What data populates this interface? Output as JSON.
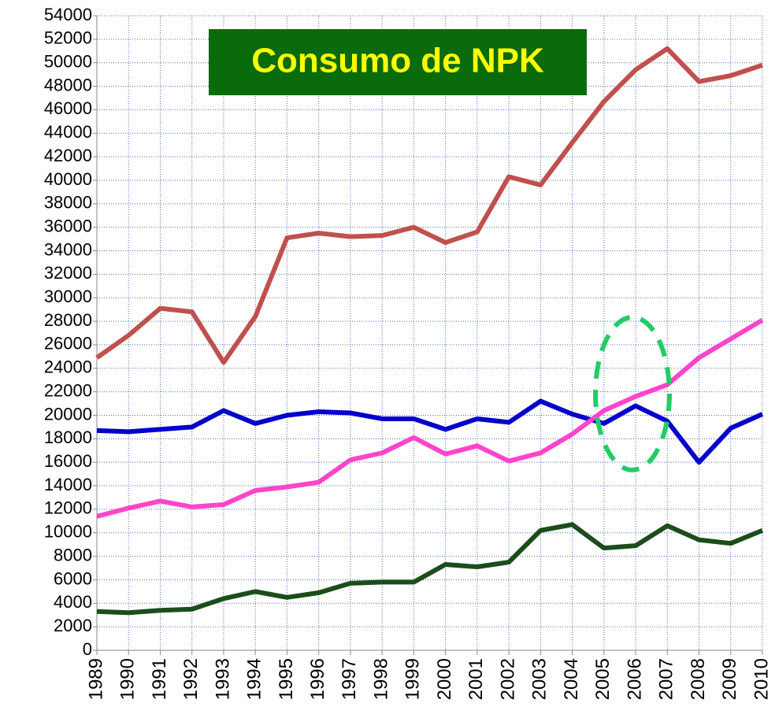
{
  "chart_data": {
    "type": "line",
    "title": "Consumo de NPK",
    "x": [
      1989,
      1990,
      1991,
      1992,
      1993,
      1994,
      1995,
      1996,
      1997,
      1998,
      1999,
      2000,
      2001,
      2002,
      2003,
      2004,
      2005,
      2006,
      2007,
      2008,
      2009,
      2010
    ],
    "xlim": [
      1989,
      2010
    ],
    "ylim": [
      0,
      54000
    ],
    "yticks": [
      0,
      2000,
      4000,
      6000,
      8000,
      10000,
      12000,
      14000,
      16000,
      18000,
      20000,
      22000,
      24000,
      26000,
      28000,
      30000,
      32000,
      34000,
      36000,
      38000,
      40000,
      42000,
      44000,
      46000,
      48000,
      50000,
      52000,
      54000
    ],
    "grid": true,
    "series": [
      {
        "color": "#c0504d",
        "values": [
          24900,
          26800,
          29100,
          28800,
          24500,
          28400,
          35100,
          35500,
          35200,
          35300,
          36000,
          34700,
          35600,
          40300,
          39600,
          43200,
          46700,
          49400,
          51200,
          48400,
          48900,
          49800
        ]
      },
      {
        "color": "#0000cc",
        "values": [
          18700,
          18600,
          18800,
          19000,
          20400,
          19300,
          20000,
          20300,
          20200,
          19700,
          19700,
          18800,
          19700,
          19400,
          21200,
          20100,
          19300,
          20800,
          19500,
          16000,
          18900,
          20100
        ]
      },
      {
        "color": "#ff44cc",
        "values": [
          11400,
          12100,
          12700,
          12200,
          12400,
          13600,
          13900,
          14300,
          16200,
          16800,
          18100,
          16700,
          17400,
          16100,
          16800,
          18400,
          20400,
          21600,
          22600,
          24900,
          26500,
          28100
        ]
      },
      {
        "color": "#1a4d1a",
        "values": [
          3300,
          3200,
          3400,
          3500,
          4400,
          5000,
          4500,
          4900,
          5700,
          5800,
          5800,
          7300,
          7100,
          7500,
          10200,
          10700,
          8700,
          8900,
          10600,
          9400,
          9100,
          10200
        ]
      }
    ]
  }
}
